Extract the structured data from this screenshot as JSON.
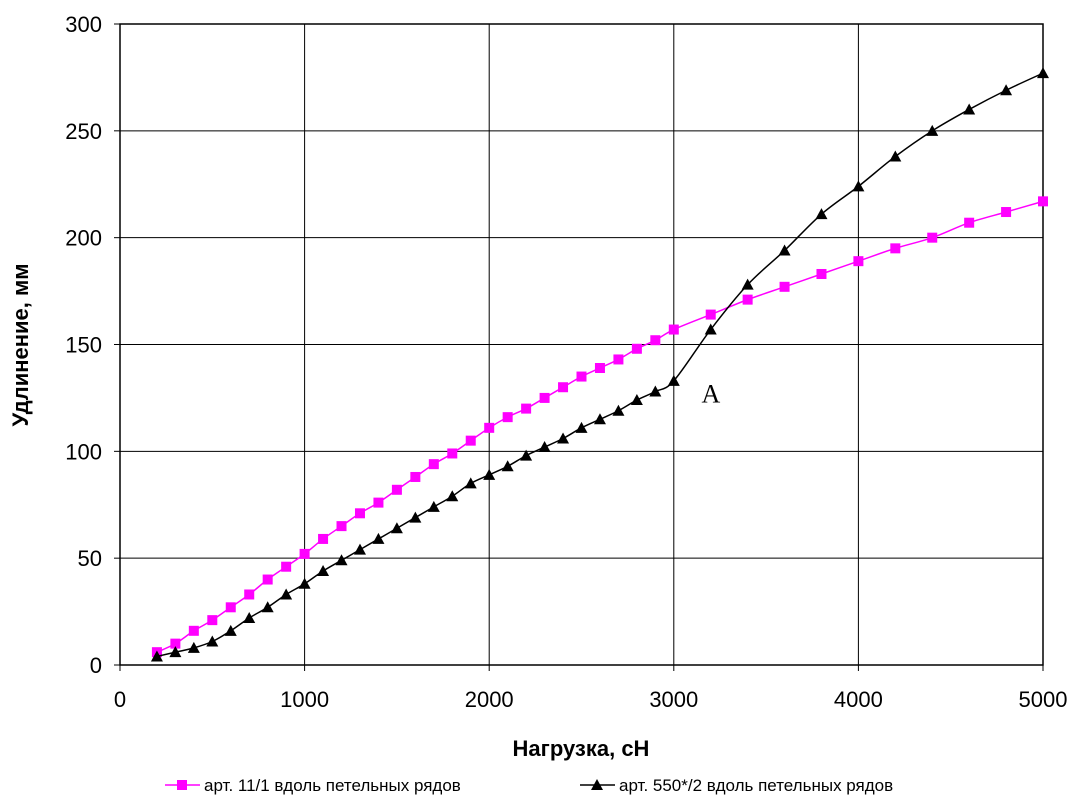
{
  "chart_data": {
    "type": "line",
    "title": "",
    "xlabel": "Нагрузка, сН",
    "ylabel": "Удлинение, мм",
    "xlim": [
      0,
      5000
    ],
    "ylim": [
      0,
      300
    ],
    "x_ticks": [
      0,
      1000,
      2000,
      3000,
      4000,
      5000
    ],
    "y_ticks": [
      0,
      50,
      100,
      150,
      200,
      250,
      300
    ],
    "x_tick_labels": [
      "0",
      "1000",
      "2000",
      "3000",
      "4000",
      "5000"
    ],
    "y_tick_labels": [
      "0",
      "50",
      "100",
      "150",
      "200",
      "250",
      "300"
    ],
    "grid": true,
    "legend_position": "bottom",
    "series": [
      {
        "name": "арт. 11/1 вдоль петельных рядов",
        "color": "#ff00ff",
        "marker": "square",
        "x": [
          200,
          300,
          400,
          500,
          600,
          700,
          800,
          900,
          1000,
          1100,
          1200,
          1300,
          1400,
          1500,
          1600,
          1700,
          1800,
          1900,
          2000,
          2100,
          2200,
          2300,
          2400,
          2500,
          2600,
          2700,
          2800,
          2900,
          3000,
          3200,
          3400,
          3600,
          3800,
          4000,
          4200,
          4400,
          4600,
          4800,
          5000
        ],
        "y": [
          6,
          10,
          16,
          21,
          27,
          33,
          40,
          46,
          52,
          59,
          65,
          71,
          76,
          82,
          88,
          94,
          99,
          105,
          111,
          116,
          120,
          125,
          130,
          135,
          139,
          143,
          148,
          152,
          157,
          164,
          171,
          177,
          183,
          189,
          195,
          200,
          207,
          212,
          217
        ]
      },
      {
        "name": "арт. 550*/2 вдоль петельных рядов",
        "color": "#000000",
        "marker": "triangle",
        "x": [
          200,
          300,
          400,
          500,
          600,
          700,
          800,
          900,
          1000,
          1100,
          1200,
          1300,
          1400,
          1500,
          1600,
          1700,
          1800,
          1900,
          2000,
          2100,
          2200,
          2300,
          2400,
          2500,
          2600,
          2700,
          2800,
          2900,
          3000,
          3200,
          3400,
          3600,
          3800,
          4000,
          4200,
          4400,
          4600,
          4800,
          5000
        ],
        "y": [
          4,
          6,
          8,
          11,
          16,
          22,
          27,
          33,
          38,
          44,
          49,
          54,
          59,
          64,
          69,
          74,
          79,
          85,
          89,
          93,
          98,
          102,
          106,
          111,
          115,
          119,
          124,
          128,
          133,
          157,
          178,
          194,
          211,
          224,
          238,
          250,
          260,
          269,
          277
        ]
      }
    ],
    "annotations": [
      {
        "text": "A",
        "x": 3150,
        "y": 127
      }
    ]
  }
}
